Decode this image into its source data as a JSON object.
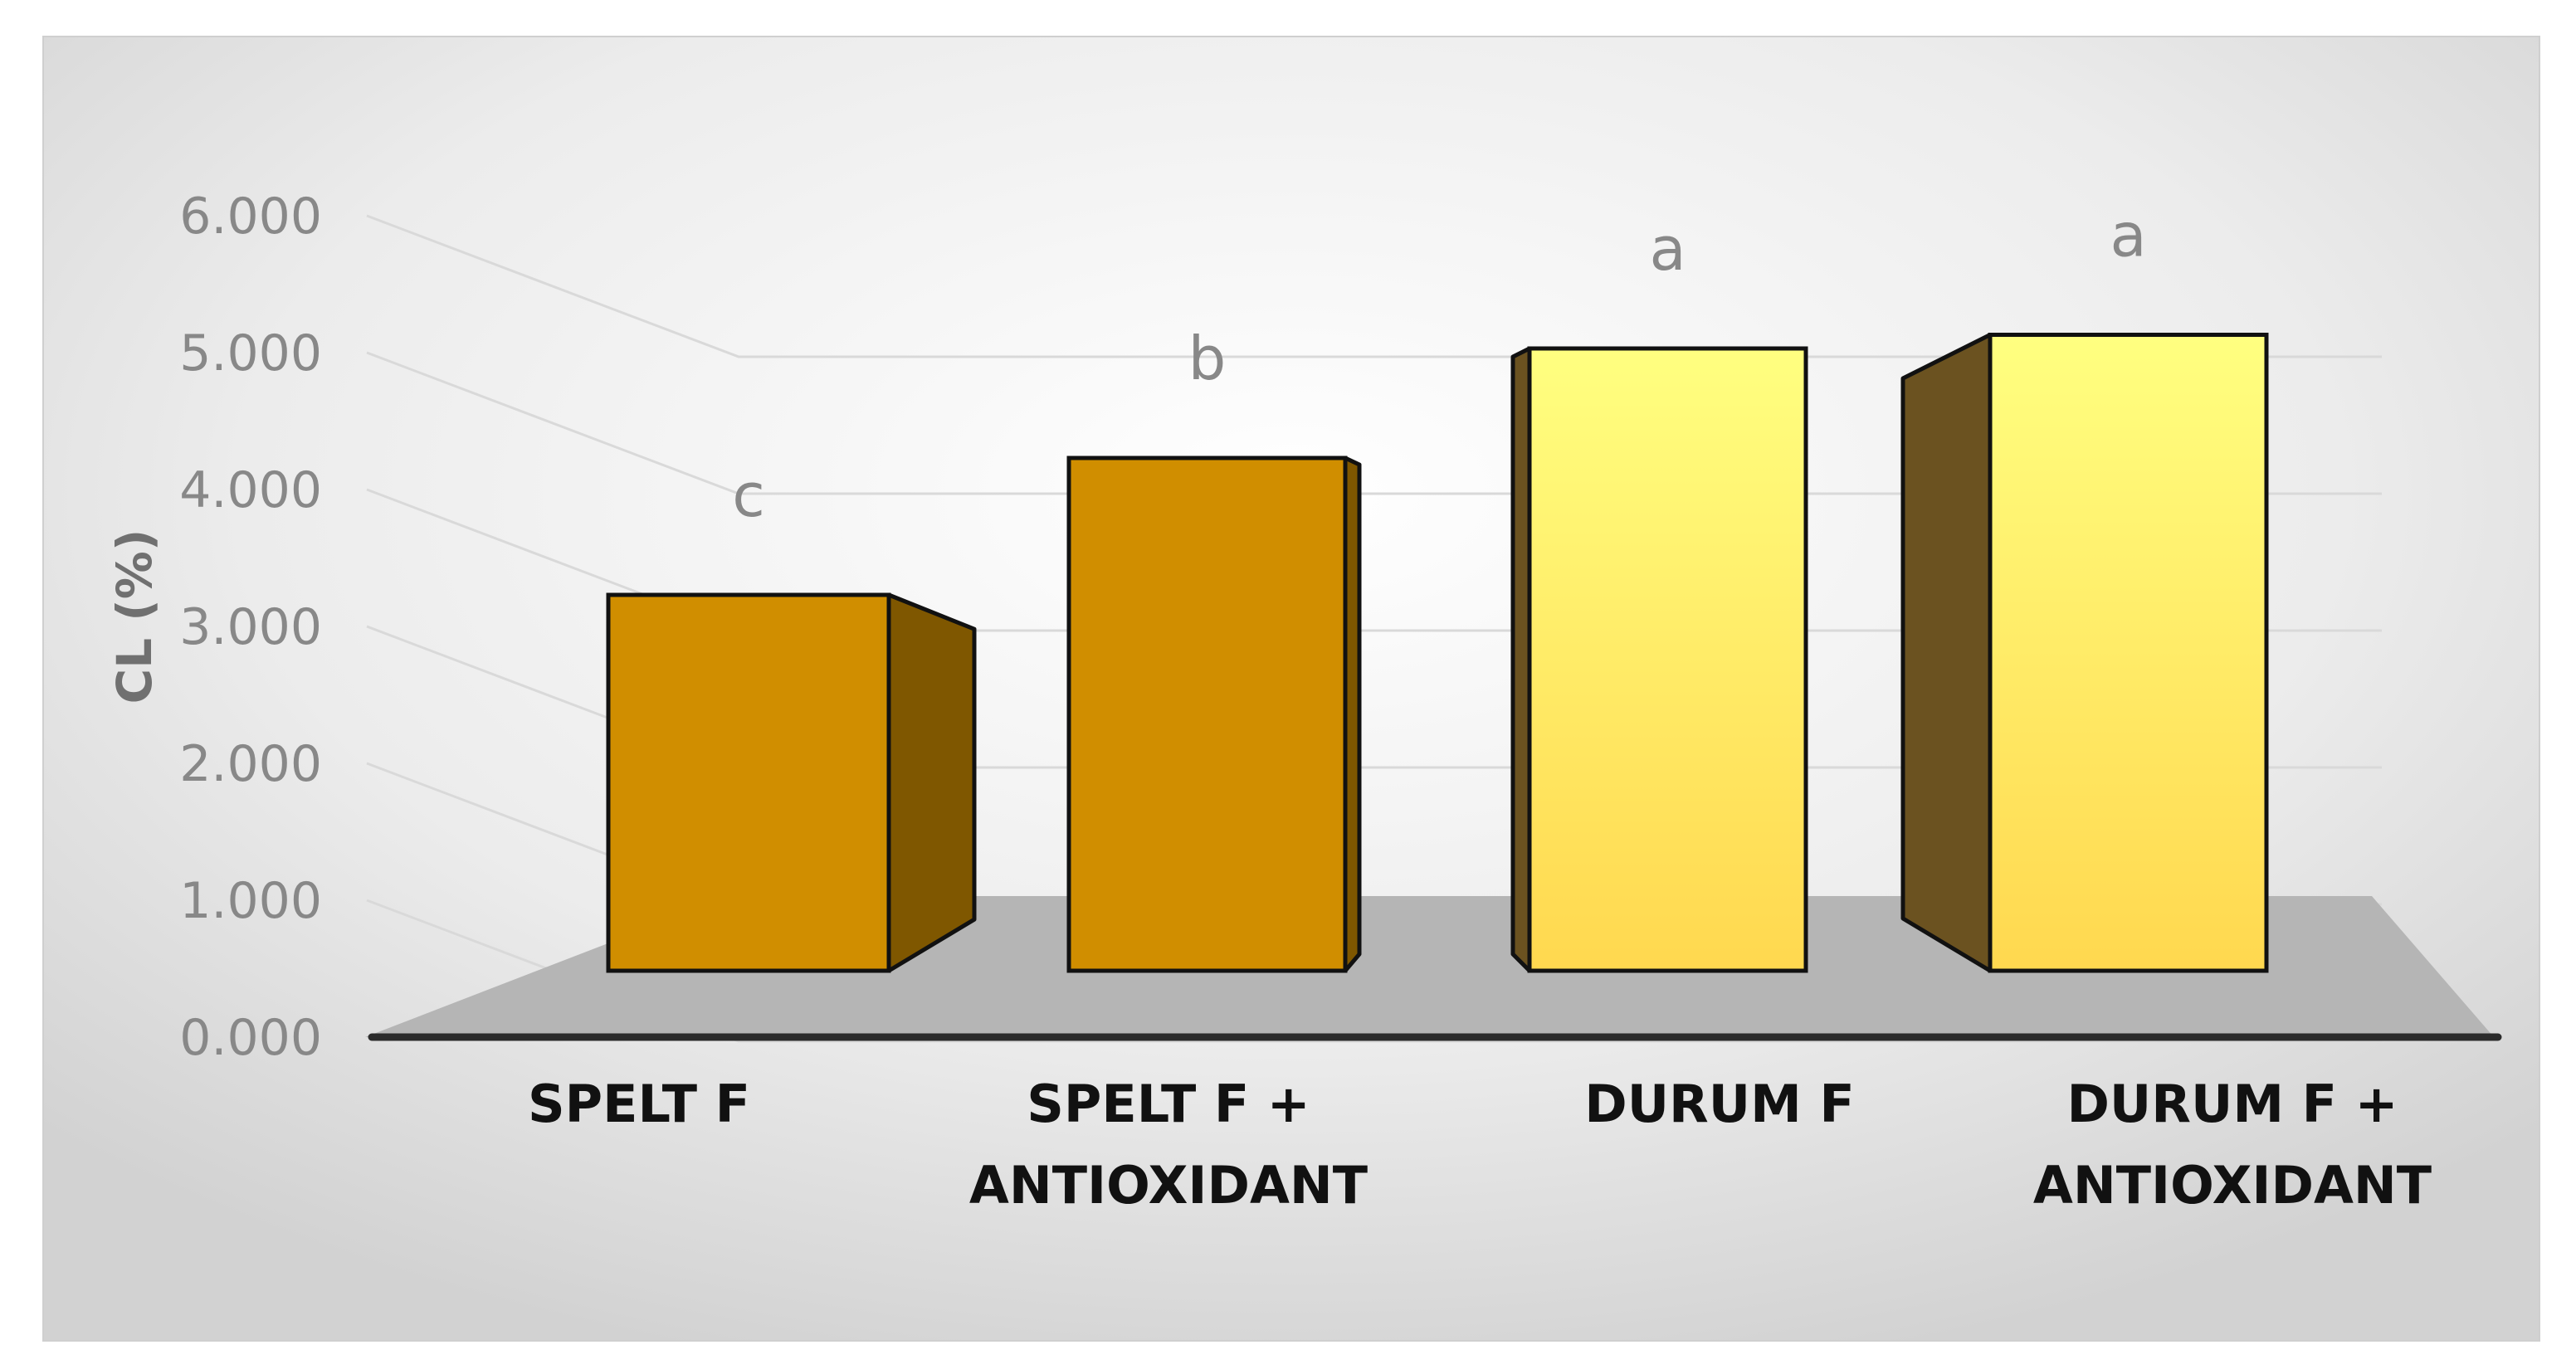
{
  "chart_data": {
    "type": "bar",
    "title": "",
    "xlabel": "",
    "ylabel": "CL (%)",
    "ylim": [
      0,
      6
    ],
    "yticks": [
      "0.000",
      "1.000",
      "2.000",
      "3.000",
      "4.000",
      "5.000",
      "6.000"
    ],
    "categories": [
      [
        "SPELT F"
      ],
      [
        "SPELT F +",
        "ANTIOXIDANT"
      ],
      [
        "DURUM F"
      ],
      [
        "DURUM F +",
        "ANTIOXIDANT"
      ]
    ],
    "values": [
      3.2,
      4.2,
      5.0,
      5.1
    ],
    "significance_letters": [
      "c",
      "b",
      "a",
      "a"
    ],
    "colors": {
      "spelt_front": "#D08E00",
      "spelt_side": "#7F5700",
      "durum_top": "#FFFF80",
      "durum_bottom": "#FFD84F",
      "durum_side": "#6B5220",
      "floor": "#B5B5B5",
      "axis": "#2B2B2B"
    }
  }
}
